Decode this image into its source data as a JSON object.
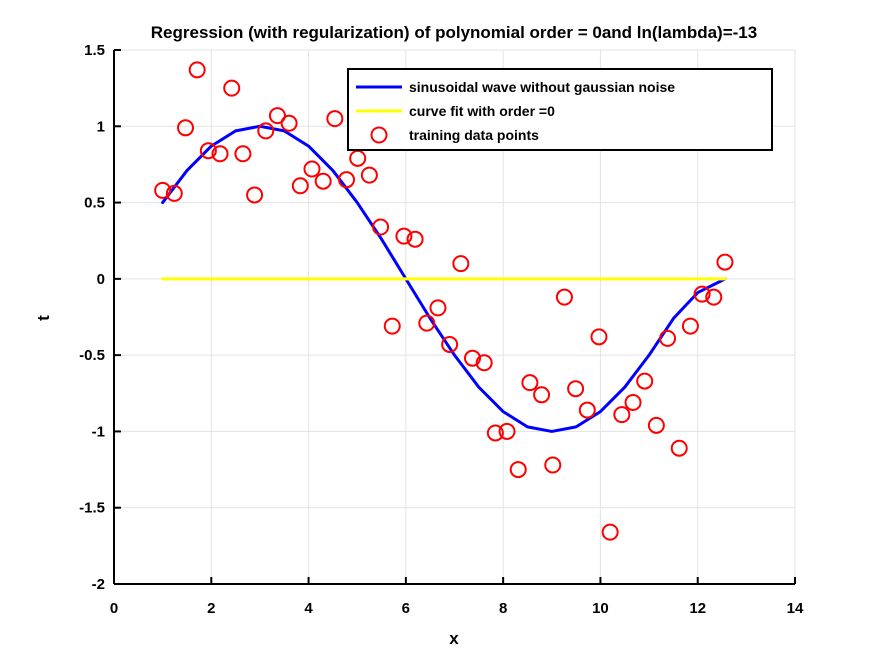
{
  "chart_data": {
    "type": "line",
    "title": "Regression (with regularization) of polynomial order = 0and ln(lambda)=-13",
    "xlabel": "x",
    "ylabel": "t",
    "xlim": [
      0,
      14
    ],
    "ylim": [
      -2,
      1.5
    ],
    "xticks": [
      0,
      2,
      4,
      6,
      8,
      10,
      12,
      14
    ],
    "yticks": [
      -2,
      -1.5,
      -1,
      -0.5,
      0,
      0.5,
      1,
      1.5
    ],
    "xtick_labels": [
      "0",
      "2",
      "4",
      "6",
      "8",
      "10",
      "12",
      "14"
    ],
    "ytick_labels": [
      "-2",
      "-1.5",
      "-1",
      "-0.5",
      "0",
      "0.5",
      "1",
      "1.5"
    ],
    "grid": true,
    "legend_position": "top-right",
    "series": [
      {
        "name": "sinusoidal wave without gaussian noise",
        "kind": "line",
        "color": "#0000ff",
        "x": [
          1.0,
          1.5,
          2.0,
          2.5,
          3.0,
          3.5,
          4.0,
          4.5,
          5.0,
          5.5,
          6.0,
          6.5,
          7.0,
          7.5,
          8.0,
          8.5,
          9.0,
          9.5,
          10.0,
          10.5,
          11.0,
          11.5,
          12.0,
          12.566
        ],
        "y": [
          0.5,
          0.71,
          0.87,
          0.97,
          1.0,
          0.97,
          0.87,
          0.71,
          0.5,
          0.26,
          0.0,
          -0.26,
          -0.5,
          -0.71,
          -0.87,
          -0.97,
          -1.0,
          -0.97,
          -0.87,
          -0.71,
          -0.5,
          -0.26,
          -0.09,
          0.0
        ]
      },
      {
        "name": "curve fit with order =0",
        "kind": "line",
        "color": "#ffff00",
        "x": [
          1.0,
          12.566
        ],
        "y": [
          0.0,
          0.0
        ]
      },
      {
        "name": "training data points",
        "kind": "scatter",
        "color": "#ff0000",
        "x": [
          1.0,
          1.24,
          1.47,
          1.71,
          1.94,
          2.18,
          2.42,
          2.65,
          2.89,
          3.12,
          3.36,
          3.6,
          3.83,
          4.07,
          4.3,
          4.54,
          4.78,
          5.01,
          5.25,
          5.48,
          5.72,
          5.96,
          6.19,
          6.43,
          6.66,
          6.9,
          7.13,
          7.37,
          7.61,
          7.84,
          8.08,
          8.31,
          8.55,
          8.79,
          9.02,
          9.26,
          9.49,
          9.73,
          9.97,
          10.2,
          10.44,
          10.67,
          10.91,
          11.15,
          11.38,
          11.62,
          11.85,
          12.09,
          12.33,
          12.56
        ],
        "y": [
          0.58,
          0.56,
          0.99,
          1.37,
          0.84,
          0.82,
          1.25,
          0.82,
          0.55,
          0.97,
          1.07,
          1.02,
          0.61,
          0.72,
          0.64,
          1.05,
          0.65,
          0.79,
          0.68,
          0.34,
          -0.31,
          0.28,
          0.26,
          -0.29,
          -0.19,
          -0.43,
          0.1,
          -0.52,
          -0.55,
          -1.01,
          -1.0,
          -1.25,
          -0.68,
          -0.76,
          -1.22,
          -0.12,
          -0.72,
          -0.86,
          -0.38,
          -1.66,
          -0.89,
          -0.81,
          -0.67,
          -0.96,
          -0.39,
          -1.11,
          -0.31,
          -0.1,
          -0.12,
          0.11
        ]
      }
    ]
  },
  "colors": {
    "grid": "#e3e3e3",
    "axis": "#000000",
    "background": "#ffffff"
  }
}
